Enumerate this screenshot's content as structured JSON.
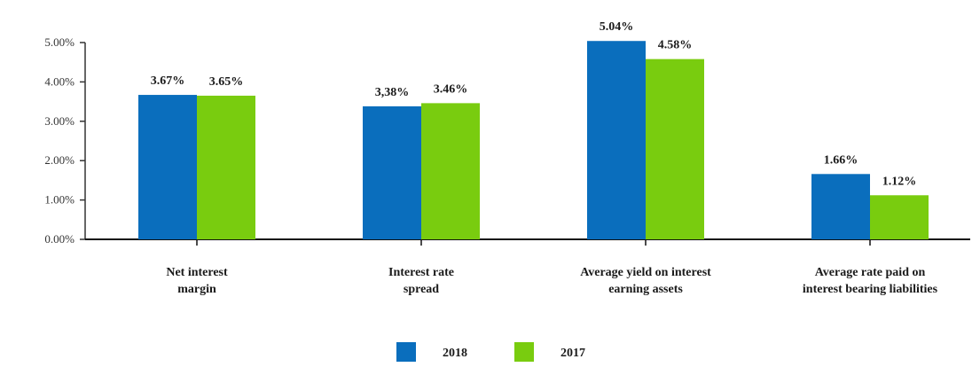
{
  "chart_data": {
    "type": "bar",
    "title": "",
    "xlabel": "",
    "ylabel": "",
    "ylim": [
      0,
      5
    ],
    "yticks": [
      0,
      1,
      2,
      3,
      4,
      5
    ],
    "ytick_labels": [
      "0.00%",
      "1.00%",
      "2.00%",
      "3.00%",
      "4.00%",
      "5.00%"
    ],
    "grid": false,
    "legend_position": "bottom-center",
    "categories": [
      [
        "Net interest",
        "margin"
      ],
      [
        "Interest rate",
        "spread"
      ],
      [
        "Average yield on interest",
        "earning assets"
      ],
      [
        "Average rate paid on",
        "interest bearing liabilities"
      ]
    ],
    "series": [
      {
        "name": "2018",
        "color": "#0a6ebd",
        "values": [
          3.67,
          3.38,
          5.04,
          1.66
        ],
        "labels": [
          "3.67%",
          "3,38%",
          "5.04%",
          "1.66%"
        ]
      },
      {
        "name": "2017",
        "color": "#79cc0f",
        "values": [
          3.65,
          3.46,
          4.58,
          1.12
        ],
        "labels": [
          "3.65%",
          "3.46%",
          "4.58%",
          "1.12%"
        ]
      }
    ]
  }
}
